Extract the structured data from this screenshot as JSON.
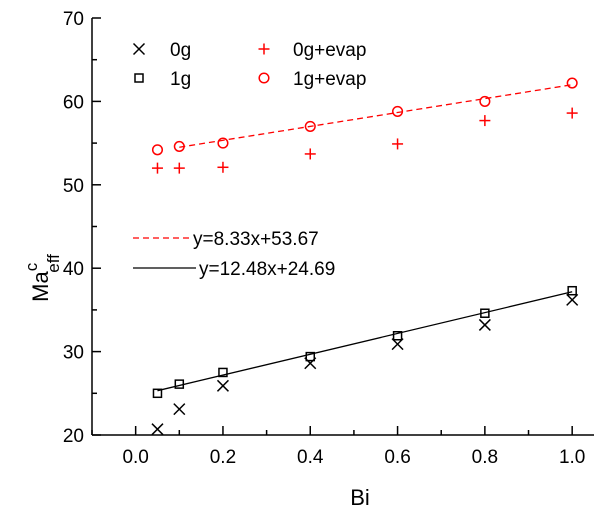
{
  "chart_data": {
    "type": "scatter",
    "xlabel": "Bi",
    "ylabel": {
      "base": "Ma",
      "sup": "c",
      "sub": "eff"
    },
    "xlim": [
      -0.1,
      1.05
    ],
    "ylim": [
      20,
      70
    ],
    "xticks": [
      0.0,
      0.2,
      0.4,
      0.6,
      0.8,
      1.0
    ],
    "xtick_labels": [
      "0.0",
      "0.2",
      "0.4",
      "0.6",
      "0.8",
      "1.0"
    ],
    "xticks_minor": [
      -0.1,
      0.1,
      0.3,
      0.5,
      0.7,
      0.9
    ],
    "yticks": [
      20,
      30,
      40,
      50,
      60,
      70
    ],
    "ytick_labels": [
      "20",
      "30",
      "40",
      "50",
      "60",
      "70"
    ],
    "yticks_minor": [
      25,
      35,
      45,
      55,
      65
    ],
    "grid": false,
    "series": [
      {
        "name": "0g",
        "marker": "x",
        "color": "#000000",
        "x": [
          0.05,
          0.1,
          0.2,
          0.4,
          0.6,
          0.8,
          1.0
        ],
        "y": [
          20.7,
          23.1,
          25.9,
          28.6,
          30.9,
          33.2,
          36.2
        ]
      },
      {
        "name": "1g",
        "marker": "square",
        "color": "#000000",
        "x": [
          0.05,
          0.1,
          0.2,
          0.4,
          0.6,
          0.8,
          1.0
        ],
        "y": [
          25.0,
          26.1,
          27.5,
          29.4,
          31.9,
          34.6,
          37.3
        ]
      },
      {
        "name": "0g+evap",
        "marker": "plus",
        "color": "#ff0000",
        "x": [
          0.05,
          0.1,
          0.2,
          0.4,
          0.6,
          0.8,
          1.0
        ],
        "y": [
          52.0,
          52.0,
          52.1,
          53.7,
          54.9,
          57.7,
          58.6
        ]
      },
      {
        "name": "1g+evap",
        "marker": "circle",
        "color": "#ff0000",
        "x": [
          0.05,
          0.1,
          0.2,
          0.4,
          0.6,
          0.8,
          1.0
        ],
        "y": [
          54.2,
          54.6,
          55.0,
          57.0,
          58.8,
          60.0,
          62.2
        ]
      }
    ],
    "legend_placement": "top-left",
    "fits": [
      {
        "label": "y=8.33x+53.67",
        "slope": 8.33,
        "intercept": 53.67,
        "x_range": [
          0.1,
          1.0
        ],
        "style": "dashed",
        "color": "#ff0000"
      },
      {
        "label": "y=12.48x+24.69",
        "slope": 12.48,
        "intercept": 24.69,
        "x_range": [
          0.05,
          1.0
        ],
        "style": "solid",
        "color": "#000000"
      }
    ]
  }
}
